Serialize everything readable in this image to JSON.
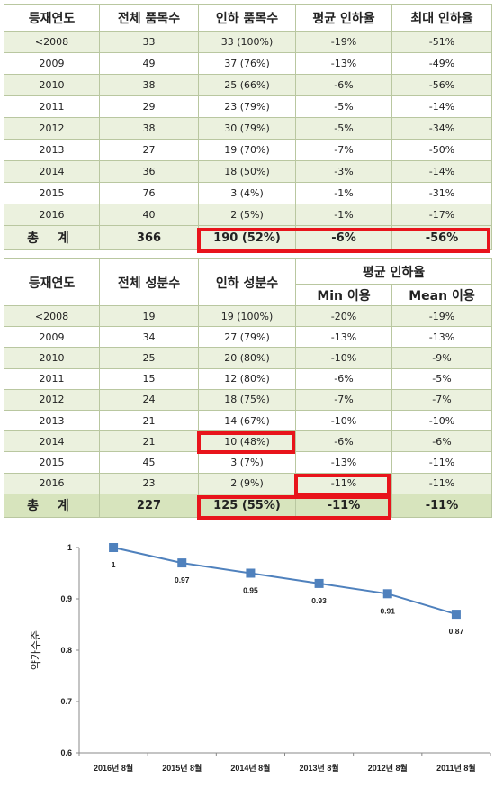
{
  "table1": {
    "headers": [
      "등재연도",
      "전체 품목수",
      "인하 품목수",
      "평균 인하율",
      "최대 인하율"
    ],
    "rows": [
      [
        "<2008",
        "33",
        "33 (100%)",
        "-19%",
        "-51%"
      ],
      [
        "2009",
        "49",
        "37 (76%)",
        "-13%",
        "-49%"
      ],
      [
        "2010",
        "38",
        "25 (66%)",
        "-6%",
        "-56%"
      ],
      [
        "2011",
        "29",
        "23 (79%)",
        "-5%",
        "-14%"
      ],
      [
        "2012",
        "38",
        "30 (79%)",
        "-5%",
        "-34%"
      ],
      [
        "2013",
        "27",
        "19 (70%)",
        "-7%",
        "-50%"
      ],
      [
        "2014",
        "36",
        "18 (50%)",
        "-3%",
        "-14%"
      ],
      [
        "2015",
        "76",
        "3 (4%)",
        "-1%",
        "-31%"
      ],
      [
        "2016",
        "40",
        "2 (5%)",
        "-1%",
        "-17%"
      ]
    ],
    "total": [
      "총 계",
      "366",
      "190 (52%)",
      "-6%",
      "-56%"
    ]
  },
  "table2": {
    "headers": [
      "등재연도",
      "전체 성분수",
      "인하 성분수",
      "평균 인하율"
    ],
    "subheaders": [
      "Min 이용",
      "Mean 이용"
    ],
    "rows": [
      [
        "<2008",
        "19",
        "19 (100%)",
        "-20%",
        "-19%"
      ],
      [
        "2009",
        "34",
        "27 (79%)",
        "-13%",
        "-13%"
      ],
      [
        "2010",
        "25",
        "20 (80%)",
        "-10%",
        "-9%"
      ],
      [
        "2011",
        "15",
        "12 (80%)",
        "-6%",
        "-5%"
      ],
      [
        "2012",
        "24",
        "18 (75%)",
        "-7%",
        "-7%"
      ],
      [
        "2013",
        "21",
        "14 (67%)",
        "-10%",
        "-10%"
      ],
      [
        "2014",
        "21",
        "10 (48%)",
        "-6%",
        "-6%"
      ],
      [
        "2015",
        "45",
        "3 (7%)",
        "-13%",
        "-11%"
      ],
      [
        "2016",
        "23",
        "2 (9%)",
        "-11%",
        "-11%"
      ]
    ],
    "total": [
      "총 계",
      "227",
      "125 (55%)",
      "-11%",
      "-11%"
    ]
  },
  "highlight_color": "#e8141b",
  "chart_data": {
    "type": "line",
    "categories": [
      "2016년 8월",
      "2015년 8월",
      "2014년 8월",
      "2013년 8월",
      "2012년 8월",
      "2011년 8월"
    ],
    "series": [
      {
        "values": [
          1,
          0.97,
          0.95,
          0.93,
          0.91,
          0.87
        ],
        "color": "#4f81bd"
      }
    ],
    "data_labels": [
      "1",
      "0.97",
      "0.95",
      "0.93",
      "0.91",
      "0.87"
    ],
    "ylabel": "약가수준",
    "xlabel": "",
    "ylim": [
      0.6,
      1
    ],
    "yticks": [
      "0.6",
      "0.7",
      "0.8",
      "0.9",
      "1"
    ],
    "grid": false
  }
}
